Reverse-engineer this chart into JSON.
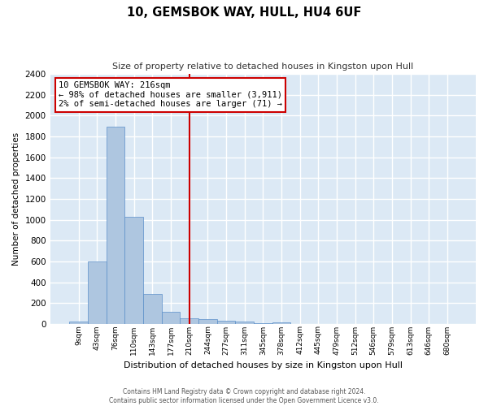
{
  "title": "10, GEMSBOK WAY, HULL, HU4 6UF",
  "subtitle": "Size of property relative to detached houses in Kingston upon Hull",
  "xlabel": "Distribution of detached houses by size in Kingston upon Hull",
  "ylabel": "Number of detached properties",
  "footer_line1": "Contains HM Land Registry data © Crown copyright and database right 2024.",
  "footer_line2": "Contains public sector information licensed under the Open Government Licence v3.0.",
  "bar_color": "#aec6e0",
  "bar_edge_color": "#5b8fc9",
  "background_color": "#dce9f5",
  "grid_color": "#ffffff",
  "vline_x": 6,
  "vline_color": "#cc0000",
  "annotation_text": "10 GEMSBOK WAY: 216sqm\n← 98% of detached houses are smaller (3,911)\n2% of semi-detached houses are larger (71) →",
  "annotation_box_color": "#ffffff",
  "annotation_box_edge_color": "#cc0000",
  "bin_labels": [
    "9sqm",
    "43sqm",
    "76sqm",
    "110sqm",
    "143sqm",
    "177sqm",
    "210sqm",
    "244sqm",
    "277sqm",
    "311sqm",
    "345sqm",
    "378sqm",
    "412sqm",
    "445sqm",
    "479sqm",
    "512sqm",
    "546sqm",
    "579sqm",
    "613sqm",
    "646sqm",
    "680sqm"
  ],
  "bar_heights": [
    20,
    600,
    1890,
    1030,
    290,
    120,
    50,
    45,
    30,
    20,
    10,
    15,
    0,
    0,
    0,
    0,
    0,
    0,
    0,
    0,
    0
  ],
  "ylim": [
    0,
    2400
  ],
  "yticks": [
    0,
    200,
    400,
    600,
    800,
    1000,
    1200,
    1400,
    1600,
    1800,
    2000,
    2200,
    2400
  ]
}
